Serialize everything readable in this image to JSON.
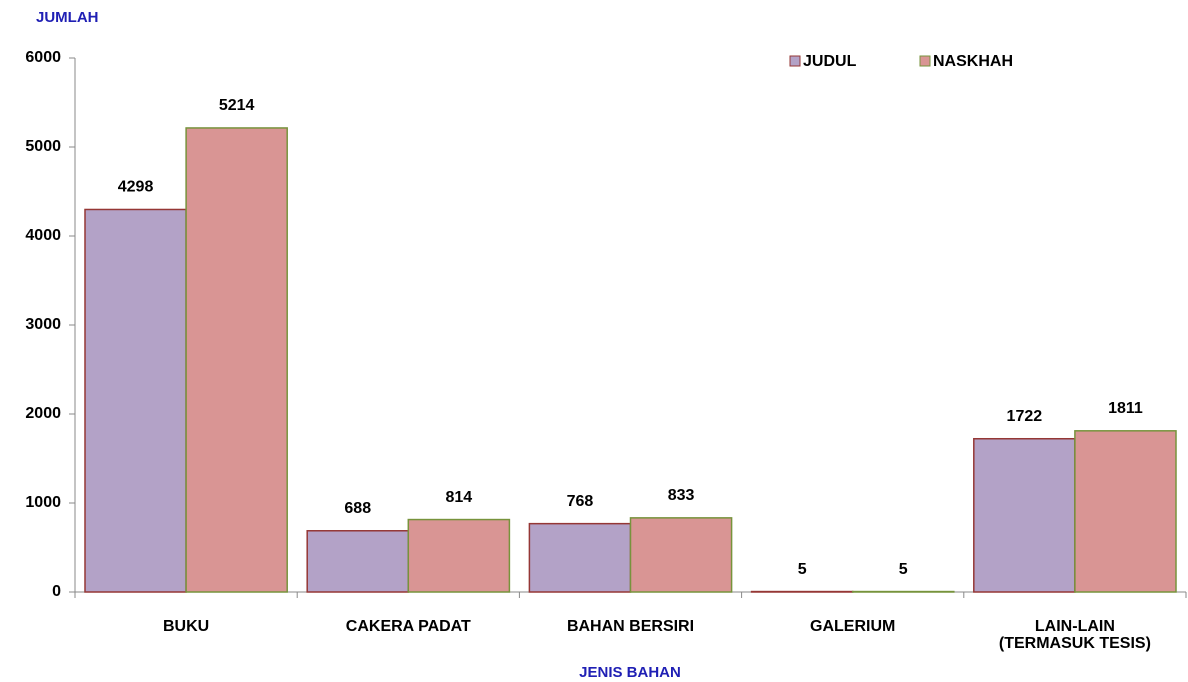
{
  "chart_data": {
    "type": "bar",
    "y_label": "JUMLAH",
    "x_label": "JENIS BAHAN",
    "categories": [
      "BUKU",
      "CAKERA PADAT",
      "BAHAN BERSIRI",
      "GALERIUM",
      "LAIN-LAIN\n(TERMASUK TESIS)"
    ],
    "series": [
      {
        "name": "JUDUL",
        "color": "#b3a2c7",
        "edge": "#953735",
        "values": [
          4298,
          688,
          768,
          5,
          1722
        ]
      },
      {
        "name": "NASKHAH",
        "color": "#d99594",
        "edge": "#77933c",
        "values": [
          5214,
          814,
          833,
          5,
          1811
        ]
      }
    ],
    "ylim": [
      0,
      6000
    ],
    "yticks": [
      0,
      1000,
      2000,
      3000,
      4000,
      5000,
      6000
    ],
    "legend": "top-right"
  }
}
